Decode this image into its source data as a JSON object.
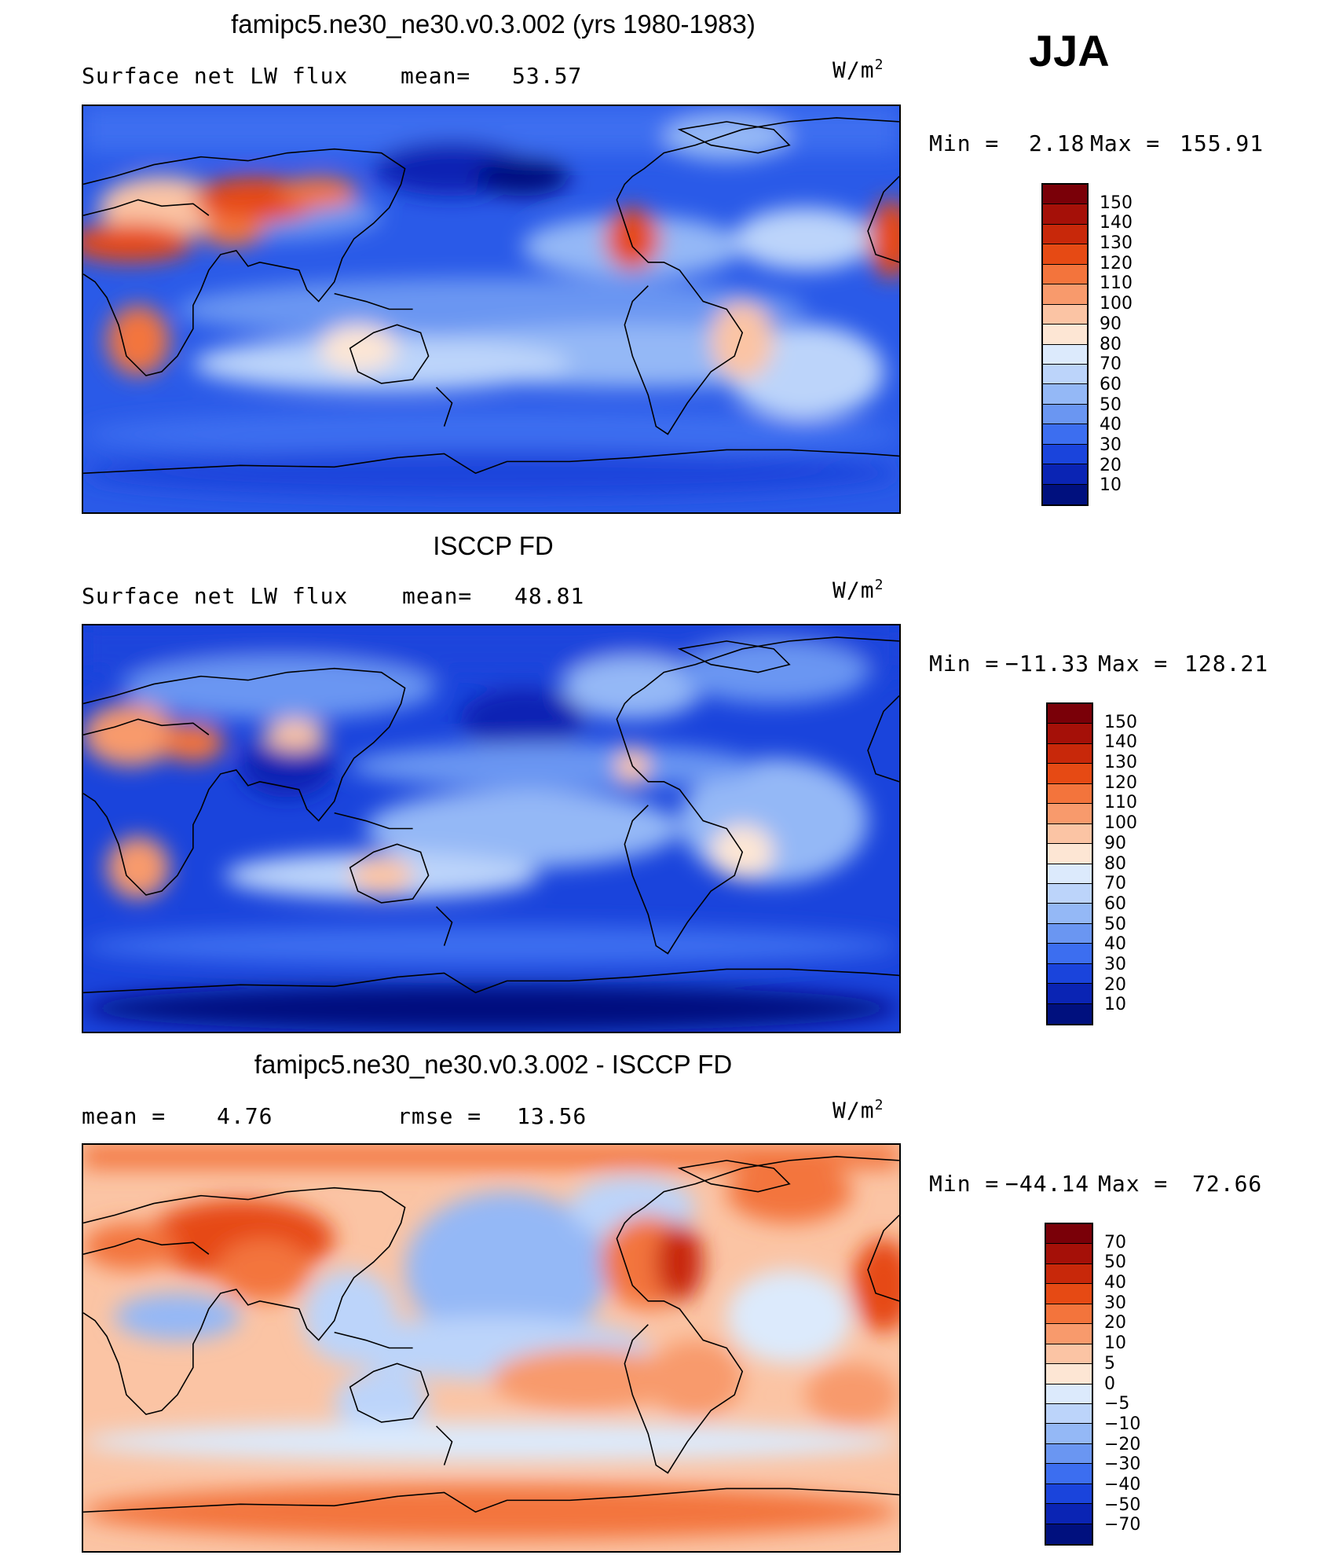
{
  "season": "JJA",
  "panels": [
    {
      "id": "model",
      "title": "famipc5.ne30_ne30.v0.3.002 (yrs 1980-1983)",
      "left_text": "Surface net LW flux",
      "mid_label": "mean=",
      "mid_value": "53.57",
      "units_base": "W/m",
      "units_exp": "2",
      "min_label": "Min =",
      "min_value": "2.18",
      "max_label": "Max =",
      "max_value": "155.91",
      "palette": "abs",
      "cbar_labels": [
        "150",
        "140",
        "130",
        "120",
        "110",
        "100",
        "90",
        "80",
        "70",
        "60",
        "50",
        "40",
        "30",
        "20",
        "10"
      ]
    },
    {
      "id": "obs",
      "title": "ISCCP FD",
      "left_text": "Surface net LW flux",
      "mid_label": "mean=",
      "mid_value": "48.81",
      "units_base": "W/m",
      "units_exp": "2",
      "min_label": "Min =",
      "min_value": "−11.33",
      "max_label": "Max =",
      "max_value": "128.21",
      "palette": "abs",
      "cbar_labels": [
        "150",
        "140",
        "130",
        "120",
        "110",
        "100",
        "90",
        "80",
        "70",
        "60",
        "50",
        "40",
        "30",
        "20",
        "10"
      ]
    },
    {
      "id": "diff",
      "title": "famipc5.ne30_ne30.v0.3.002 - ISCCP FD",
      "left_text": "mean =",
      "left_value": "4.76",
      "mid_label": "rmse =",
      "mid_value": "13.56",
      "units_base": "W/m",
      "units_exp": "2",
      "min_label": "Min =",
      "min_value": "−44.14",
      "max_label": "Max =",
      "max_value": "72.66",
      "palette": "diff",
      "cbar_labels": [
        "70",
        "50",
        "40",
        "30",
        "20",
        "10",
        "5",
        "0",
        "−5",
        "−10",
        "−20",
        "−30",
        "−40",
        "−50",
        "−70"
      ]
    }
  ],
  "colors": {
    "abs": [
      "#7a0008",
      "#a51008",
      "#c8280a",
      "#e64a14",
      "#f3743c",
      "#f89a6c",
      "#fbc4a4",
      "#fde6d4",
      "#dceafc",
      "#bcd4fa",
      "#94b8f6",
      "#6a96f2",
      "#3c6ef0",
      "#1a44dc",
      "#0a24b4",
      "#00107e"
    ],
    "diff": [
      "#7a0008",
      "#a51008",
      "#c8280a",
      "#e64a14",
      "#f3743c",
      "#f89a6c",
      "#fbc4a4",
      "#fde6d4",
      "#dceafc",
      "#bcd4fa",
      "#94b8f6",
      "#6a96f2",
      "#3c6ef0",
      "#1a44dc",
      "#0a24b4",
      "#00107e"
    ]
  }
}
